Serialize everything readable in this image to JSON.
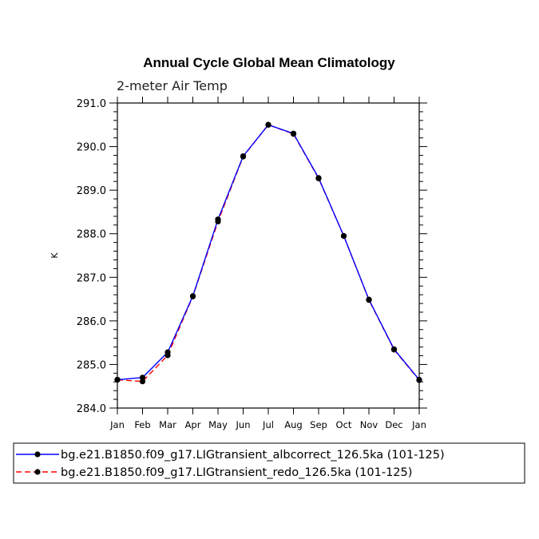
{
  "chart_data": {
    "type": "line",
    "title": "Annual Cycle Global Mean Climatology",
    "subtitle": "2-meter Air Temp",
    "xlabel": "",
    "ylabel": "K",
    "categories": [
      "Jan",
      "Feb",
      "Mar",
      "Apr",
      "May",
      "Jun",
      "Jul",
      "Aug",
      "Sep",
      "Oct",
      "Nov",
      "Dec",
      "Jan"
    ],
    "ylim": [
      284.0,
      291.0
    ],
    "yticks": [
      "284.0",
      "285.0",
      "286.0",
      "287.0",
      "288.0",
      "289.0",
      "290.0",
      "291.0"
    ],
    "series": [
      {
        "name": "bg.e21.B1850.f09_g17.LIGtransient_albcorrect_126.5ka (101-125)",
        "color": "#0000ff",
        "dash": "solid",
        "values": [
          284.65,
          284.7,
          285.28,
          286.57,
          288.33,
          289.78,
          290.5,
          290.3,
          289.28,
          287.95,
          286.49,
          285.35,
          284.65
        ]
      },
      {
        "name": "bg.e21.B1850.f09_g17.LIGtransient_redo_126.5ka (101-125)",
        "color": "#ff0000",
        "dash": "dashed",
        "values": [
          284.65,
          284.61,
          285.21,
          286.56,
          288.28,
          289.77,
          290.5,
          290.29,
          289.27,
          287.95,
          286.48,
          285.34,
          284.64
        ]
      }
    ],
    "legend_position": "bottom",
    "grid": false
  }
}
